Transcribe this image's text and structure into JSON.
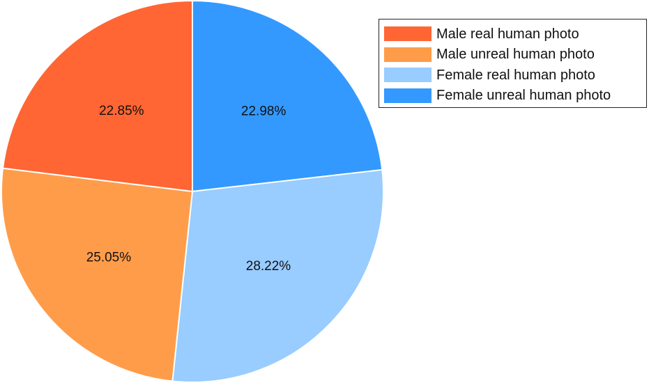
{
  "chart_data": {
    "type": "pie",
    "title": "",
    "slices": [
      {
        "name": "Female unreal human photo",
        "value": 22.98,
        "label": "22.98%",
        "color": "#3399ff"
      },
      {
        "name": "Female real human photo",
        "value": 28.22,
        "label": "28.22%",
        "color": "#99ccff"
      },
      {
        "name": "Male unreal human photo",
        "value": 25.05,
        "label": "25.05%",
        "color": "#ff9c4a"
      },
      {
        "name": "Male real human photo",
        "value": 22.85,
        "label": "22.85%",
        "color": "#ff6633"
      }
    ],
    "start_angle": "12 o'clock",
    "direction": "clockwise",
    "legend": {
      "placement": "top-right",
      "entries": [
        {
          "label": "Male real human photo",
          "color": "#ff6633"
        },
        {
          "label": "Male unreal human photo",
          "color": "#ff9c4a"
        },
        {
          "label": "Female real human photo",
          "color": "#99ccff"
        },
        {
          "label": "Female unreal human photo",
          "color": "#3399ff"
        }
      ]
    }
  }
}
